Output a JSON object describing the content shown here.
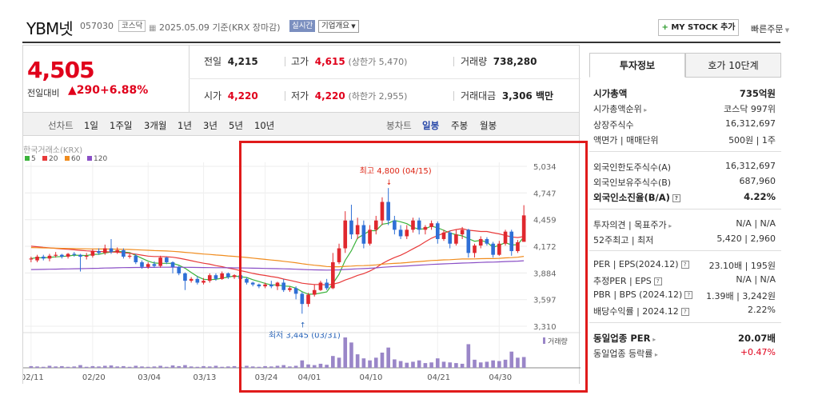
{
  "header": {
    "name": "YBM넷",
    "code": "057030",
    "market": "코스닥",
    "date": "2025.05.09",
    "basis": "기준(KRX 장마감)",
    "realtime": "실시간",
    "company_info": "기업개요",
    "mystock": "MY STOCK 추가",
    "quick_order": "빠른주문"
  },
  "quote": {
    "price": "4,505",
    "change_label": "전일대비",
    "change": "▲290",
    "change_pct": "+6.88%",
    "prev_close_label": "전일",
    "prev_close": "4,215",
    "high_label": "고가",
    "high": "4,615",
    "upper_limit": "(상한가 5,470)",
    "volume_label": "거래량",
    "volume": "738,280",
    "open_label": "시가",
    "open": "4,220",
    "low_label": "저가",
    "low": "4,220",
    "lower_limit": "(하한가 2,955)",
    "amount_label": "거래대금",
    "amount": "3,306 백만"
  },
  "chart_tabs": {
    "line_label": "선차트",
    "ranges": [
      "1일",
      "1주일",
      "3개월",
      "1년",
      "3년",
      "5년",
      "10년"
    ],
    "candle_label": "봉차트",
    "candle": [
      "일봉",
      "주봉",
      "월봉"
    ],
    "selected_candle": "일봉"
  },
  "chart_data": {
    "type": "candlestick",
    "source_label": "한국거래소(KRX)",
    "legend": [
      {
        "name": "5",
        "color": "#3bb33b"
      },
      {
        "name": "20",
        "color": "#e83a3a"
      },
      {
        "name": "60",
        "color": "#f08c1e"
      },
      {
        "name": "120",
        "color": "#8a4fc6"
      }
    ],
    "y_ticks": [
      "5,034",
      "4,747",
      "4,459",
      "4,172",
      "3,884",
      "3,597",
      "3,310"
    ],
    "ylim": [
      3310,
      5034
    ],
    "x_ticks": [
      "02/11",
      "02/20",
      "03/04",
      "03/13",
      "03/24",
      "04/01",
      "04/10",
      "04/21",
      "04/30"
    ],
    "high_annotation": "최고 4,800 (04/15)",
    "low_annotation": "최저 3,445 (03/31)",
    "volume_label": "거래량",
    "candles": [
      [
        4030,
        4040,
        4000,
        4060
      ],
      [
        4020,
        4060,
        4000,
        4080
      ],
      [
        4060,
        4040,
        4020,
        4080
      ],
      [
        4040,
        4070,
        4010,
        4090
      ],
      [
        4070,
        4080,
        4050,
        4110
      ],
      [
        4080,
        4060,
        4040,
        4090
      ],
      [
        4060,
        4090,
        4040,
        4100
      ],
      [
        4090,
        4080,
        4060,
        4110
      ],
      [
        4080,
        4060,
        3900,
        4090
      ],
      [
        4060,
        4070,
        4030,
        4100
      ],
      [
        4070,
        4120,
        4050,
        4140
      ],
      [
        4120,
        4100,
        4080,
        4150
      ],
      [
        4100,
        4150,
        4080,
        4190
      ],
      [
        4150,
        4110,
        4090,
        4250
      ],
      [
        4110,
        4130,
        4090,
        4160
      ],
      [
        4130,
        4060,
        4040,
        4150
      ],
      [
        4060,
        4070,
        4040,
        4090
      ],
      [
        4070,
        4000,
        3980,
        4090
      ],
      [
        4000,
        3950,
        3930,
        4020
      ],
      [
        3950,
        3980,
        3930,
        4000
      ],
      [
        3980,
        3960,
        3940,
        4010
      ],
      [
        3960,
        4050,
        3940,
        4070
      ],
      [
        4050,
        4000,
        3980,
        4060
      ],
      [
        4000,
        3950,
        3880,
        4010
      ],
      [
        3950,
        3880,
        3860,
        3960
      ],
      [
        3880,
        3800,
        3700,
        3890
      ],
      [
        3800,
        3820,
        3780,
        3840
      ],
      [
        3820,
        3780,
        3760,
        3850
      ],
      [
        3780,
        3800,
        3760,
        3830
      ],
      [
        3800,
        3860,
        3780,
        3880
      ],
      [
        3860,
        3820,
        3800,
        3880
      ],
      [
        3820,
        3880,
        3810,
        3900
      ],
      [
        3880,
        3840,
        3820,
        3890
      ],
      [
        3840,
        3860,
        3820,
        3870
      ],
      [
        3860,
        3820,
        3800,
        3880
      ],
      [
        3820,
        3780,
        3760,
        3840
      ],
      [
        3780,
        3760,
        3740,
        3790
      ],
      [
        3760,
        3740,
        3720,
        3770
      ],
      [
        3740,
        3760,
        3720,
        3780
      ],
      [
        3760,
        3740,
        3720,
        3800
      ],
      [
        3740,
        3780,
        3700,
        3790
      ],
      [
        3780,
        3700,
        3680,
        3820
      ],
      [
        3700,
        3720,
        3680,
        3740
      ],
      [
        3720,
        3660,
        3600,
        3740
      ],
      [
        3660,
        3550,
        3445,
        3680
      ],
      [
        3550,
        3650,
        3520,
        3670
      ],
      [
        3650,
        3700,
        3630,
        3760
      ],
      [
        3700,
        3780,
        3690,
        3800
      ],
      [
        3780,
        3720,
        3700,
        3820
      ],
      [
        3720,
        4000,
        3710,
        4100
      ],
      [
        4000,
        4150,
        3980,
        4200
      ],
      [
        4150,
        4450,
        4100,
        4550
      ],
      [
        4450,
        4300,
        4250,
        4620
      ],
      [
        4300,
        4400,
        4250,
        4480
      ],
      [
        4400,
        4200,
        4150,
        4450
      ],
      [
        4200,
        4350,
        4180,
        4400
      ],
      [
        4350,
        4450,
        4300,
        4500
      ],
      [
        4450,
        4650,
        4400,
        4700
      ],
      [
        4650,
        4450,
        4400,
        4800
      ],
      [
        4450,
        4350,
        4300,
        4500
      ],
      [
        4350,
        4280,
        4250,
        4400
      ],
      [
        4280,
        4350,
        4250,
        4400
      ],
      [
        4350,
        4450,
        4320,
        4480
      ],
      [
        4450,
        4350,
        4300,
        4480
      ],
      [
        4350,
        4380,
        4300,
        4400
      ],
      [
        4380,
        4420,
        4350,
        4450
      ],
      [
        4420,
        4250,
        4200,
        4440
      ],
      [
        4250,
        4320,
        4230,
        4350
      ],
      [
        4320,
        4200,
        4150,
        4340
      ],
      [
        4200,
        4300,
        4180,
        4350
      ],
      [
        4300,
        4350,
        4250,
        4380
      ],
      [
        4350,
        4100,
        4050,
        4360
      ],
      [
        4100,
        4180,
        4050,
        4200
      ],
      [
        4180,
        4250,
        4150,
        4280
      ],
      [
        4250,
        4200,
        4180,
        4270
      ],
      [
        4200,
        4080,
        4050,
        4220
      ],
      [
        4080,
        4200,
        4070,
        4230
      ],
      [
        4200,
        4330,
        4180,
        4350
      ],
      [
        4330,
        4120,
        4070,
        4350
      ],
      [
        4120,
        4215,
        4100,
        4240
      ],
      [
        4220,
        4505,
        4220,
        4615
      ]
    ],
    "volumes": [
      5,
      4,
      3,
      6,
      4,
      5,
      3,
      4,
      8,
      3,
      5,
      4,
      6,
      7,
      4,
      5,
      3,
      6,
      4,
      3,
      4,
      6,
      3,
      7,
      5,
      8,
      4,
      3,
      5,
      4,
      6,
      3,
      4,
      5,
      3,
      6,
      4,
      3,
      5,
      4,
      6,
      8,
      4,
      6,
      22,
      10,
      8,
      12,
      9,
      35,
      30,
      90,
      75,
      40,
      28,
      22,
      30,
      45,
      60,
      25,
      20,
      15,
      18,
      22,
      14,
      16,
      28,
      18,
      16,
      14,
      12,
      70,
      24,
      16,
      18,
      22,
      20,
      24,
      48,
      30,
      32
    ]
  },
  "invest": {
    "tabs": [
      "투자정보",
      "호가 10단계"
    ],
    "rows": [
      {
        "label": "시가총액",
        "value": "735억원",
        "bold": true
      },
      {
        "label": "시가총액순위",
        "value": "코스닥 997위",
        "arrow": true
      },
      {
        "label": "상장주식수",
        "value": "16,312,697"
      },
      {
        "label": "액면가 | 매매단위",
        "value": "500원 | 1주"
      },
      {
        "label": "외국인한도주식수(A)",
        "value": "16,312,697"
      },
      {
        "label": "외국인보유주식수(B)",
        "value": "687,960"
      },
      {
        "label": "외국인소진율(B/A)",
        "value": "4.22%",
        "bold": true,
        "help": true
      },
      {
        "label": "투자의견 | 목표주가",
        "value": "N/A | N/A",
        "arrow": true
      },
      {
        "label": "52주최고 | 최저",
        "value": "5,420 | 2,960"
      },
      {
        "label": "PER | EPS(2024.12)",
        "value": "23.10배 | 195원",
        "help": true
      },
      {
        "label": "추정PER | EPS",
        "value": "N/A | N/A",
        "help": true
      },
      {
        "label": "PBR | BPS (2024.12)",
        "value": "1.39배 | 3,242원",
        "help": true
      },
      {
        "label": "배당수익률 | 2024.12",
        "value": "2.22%",
        "help": true
      },
      {
        "label": "동일업종 PER",
        "value": "20.07배",
        "bold": true,
        "arrow": true
      },
      {
        "label": "동일업종 등락률",
        "value": "+0.47%",
        "arrow": true,
        "red": true
      }
    ]
  }
}
